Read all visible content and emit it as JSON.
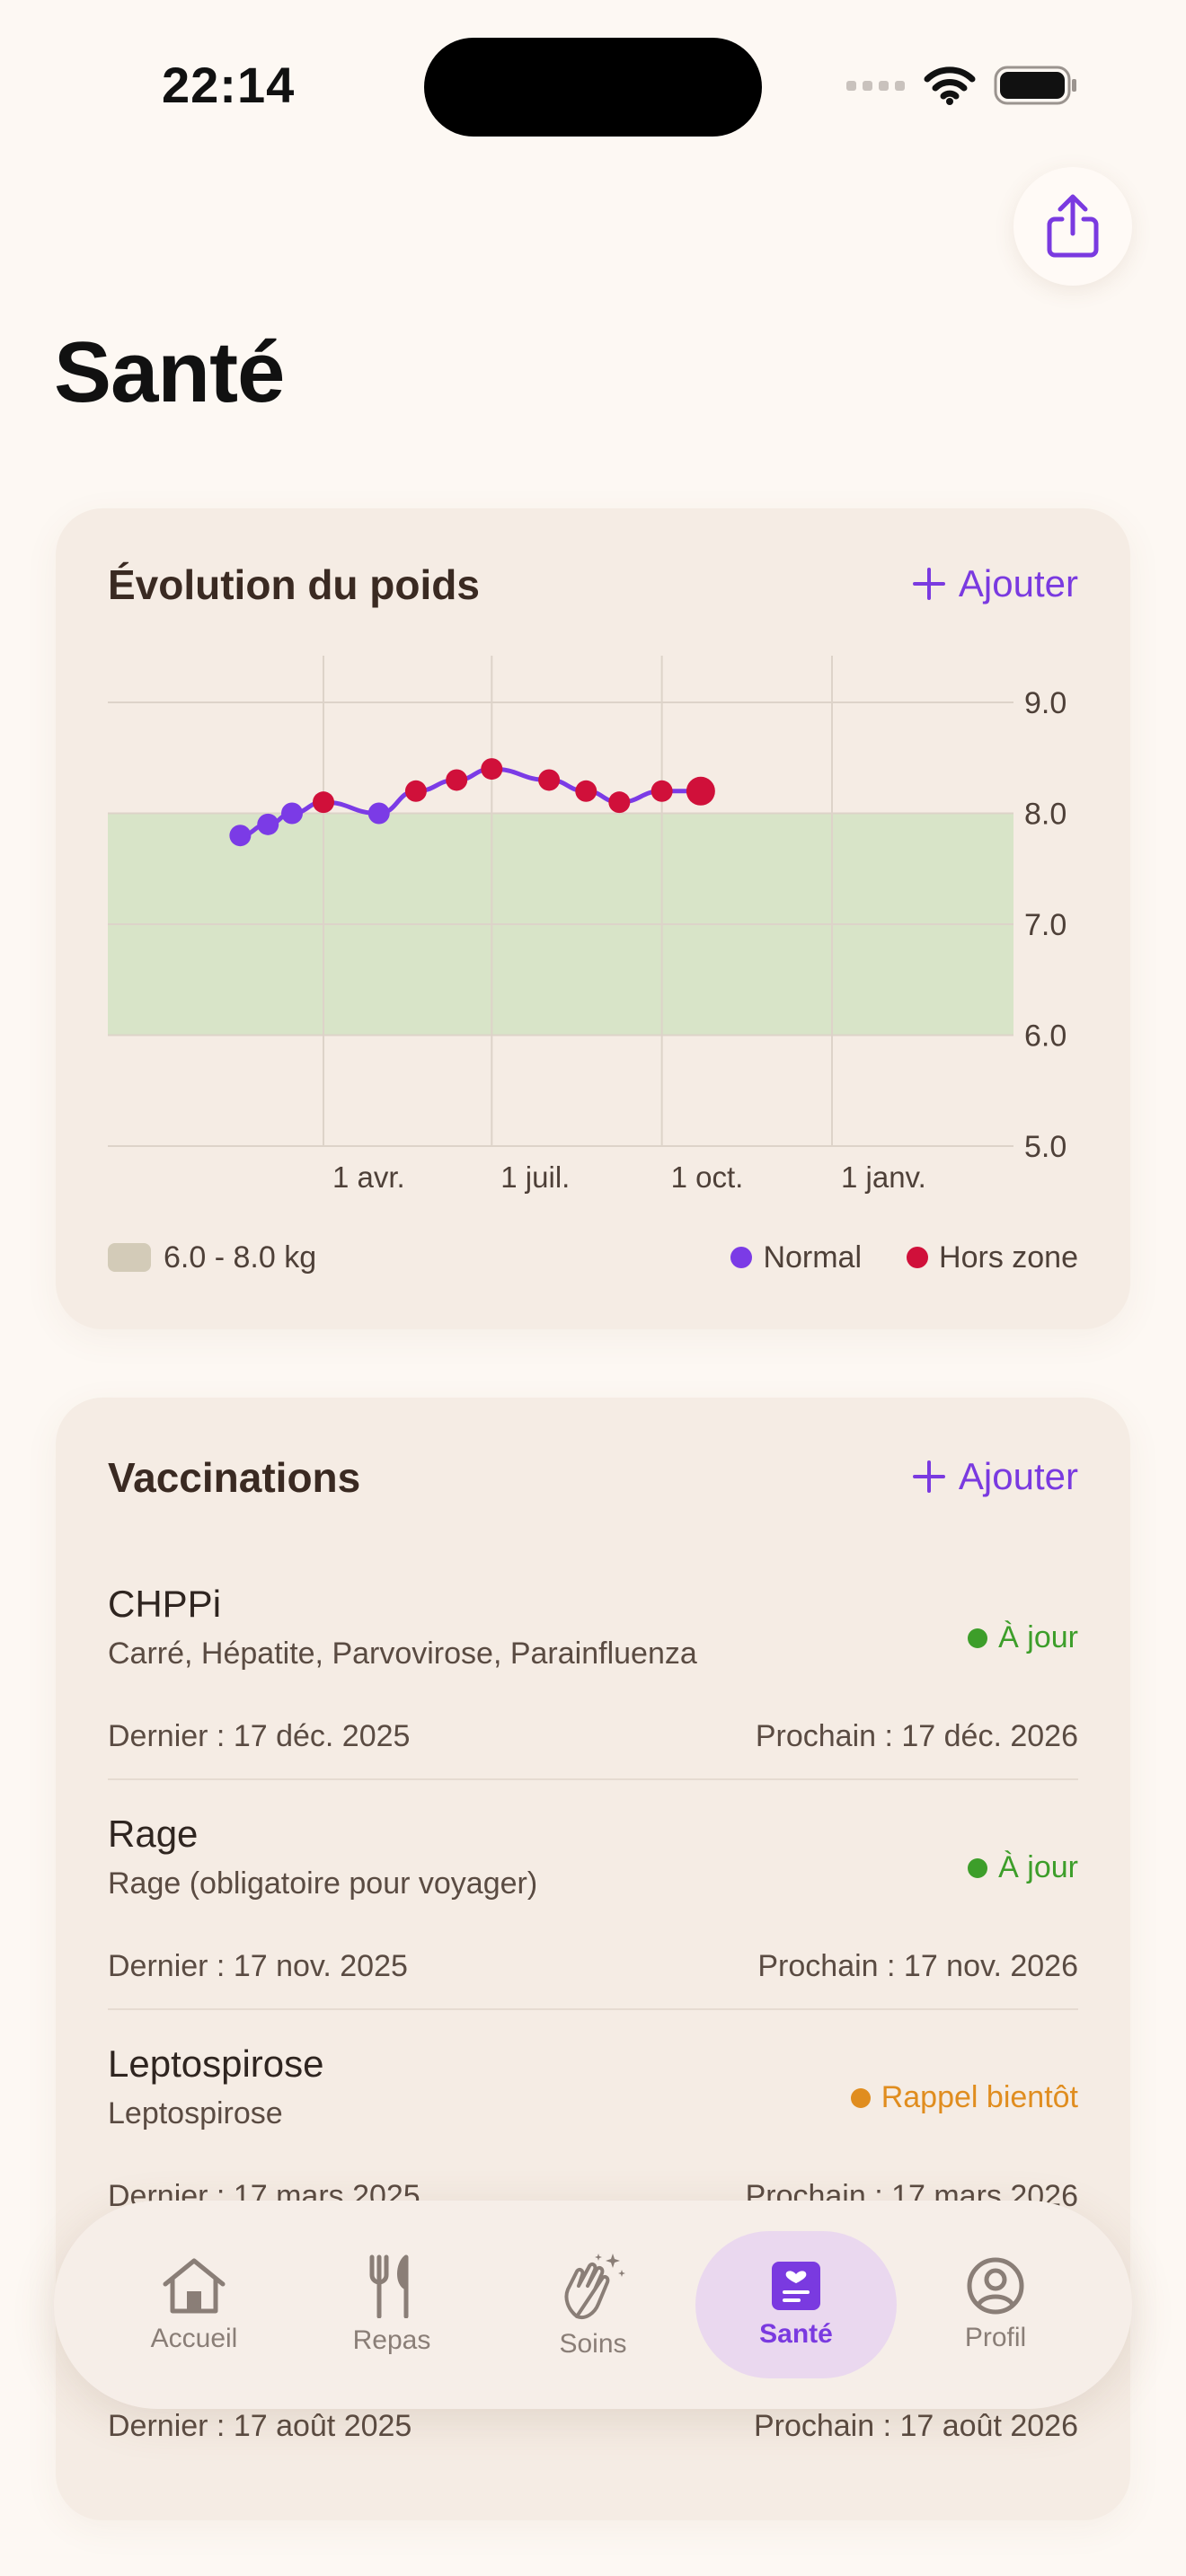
{
  "status_bar": {
    "time": "22:14"
  },
  "page": {
    "title": "Santé"
  },
  "weight_card": {
    "title": "Évolution du poids",
    "add_label": "Ajouter",
    "range_label": "6.0 - 8.0 kg",
    "legend_normal": "Normal",
    "legend_out": "Hors zone",
    "colors": {
      "normal": "#7b3be6",
      "out": "#d0103a",
      "range": "#d8e4c8"
    }
  },
  "chart_data": {
    "type": "line",
    "x_tick_labels": [
      "1 avr.",
      "1 juil.",
      "1 oct.",
      "1 janv."
    ],
    "y_tick_labels": [
      "9.0",
      "8.0",
      "7.0",
      "6.0",
      "5.0"
    ],
    "ylim": [
      5.0,
      9.0
    ],
    "target_range": [
      6.0,
      8.0
    ],
    "grid": true,
    "series": [
      {
        "points": [
          {
            "date": "2025-02-15",
            "value": 7.8,
            "zone": "normal"
          },
          {
            "date": "2025-03-02",
            "value": 7.9,
            "zone": "normal"
          },
          {
            "date": "2025-03-15",
            "value": 8.0,
            "zone": "normal"
          },
          {
            "date": "2025-04-01",
            "value": 8.1,
            "zone": "out"
          },
          {
            "date": "2025-05-01",
            "value": 8.0,
            "zone": "normal"
          },
          {
            "date": "2025-05-21",
            "value": 8.2,
            "zone": "out"
          },
          {
            "date": "2025-06-12",
            "value": 8.3,
            "zone": "out"
          },
          {
            "date": "2025-07-01",
            "value": 8.4,
            "zone": "out"
          },
          {
            "date": "2025-08-01",
            "value": 8.3,
            "zone": "out"
          },
          {
            "date": "2025-08-21",
            "value": 8.2,
            "zone": "out"
          },
          {
            "date": "2025-09-08",
            "value": 8.1,
            "zone": "out"
          },
          {
            "date": "2025-10-01",
            "value": 8.2,
            "zone": "out"
          },
          {
            "date": "2025-10-22",
            "value": 8.2,
            "zone": "out"
          }
        ]
      }
    ]
  },
  "vaccinations": {
    "title": "Vaccinations",
    "add_label": "Ajouter",
    "items": [
      {
        "name": "CHPPi",
        "desc": "Carré, Hépatite, Parvovirose, Parainfluenza",
        "status": "À jour",
        "status_color": "#3d9e2a",
        "last": "Dernier : 17 déc. 2025",
        "next": "Prochain : 17 déc. 2026"
      },
      {
        "name": "Rage",
        "desc": "Rage (obligatoire pour voyager)",
        "status": "À jour",
        "status_color": "#3d9e2a",
        "last": "Dernier : 17 nov. 2025",
        "next": "Prochain : 17 nov. 2026"
      },
      {
        "name": "Leptospirose",
        "desc": "Leptospirose",
        "status": "Rappel bientôt",
        "status_color": "#e08d1f",
        "last": "Dernier : 17 mars 2025",
        "next": "Prochain : 17 mars 2026"
      },
      {
        "last": "Dernier : 17 août 2025",
        "next": "Prochain : 17 août 2026"
      }
    ]
  },
  "tabbar": {
    "tabs": [
      {
        "label": "Accueil",
        "icon": "house-icon"
      },
      {
        "label": "Repas",
        "icon": "fork-knife-icon"
      },
      {
        "label": "Soins",
        "icon": "hands-sparkles-icon"
      },
      {
        "label": "Santé",
        "icon": "health-book-icon",
        "active": true
      },
      {
        "label": "Profil",
        "icon": "person-circle-icon"
      }
    ]
  }
}
